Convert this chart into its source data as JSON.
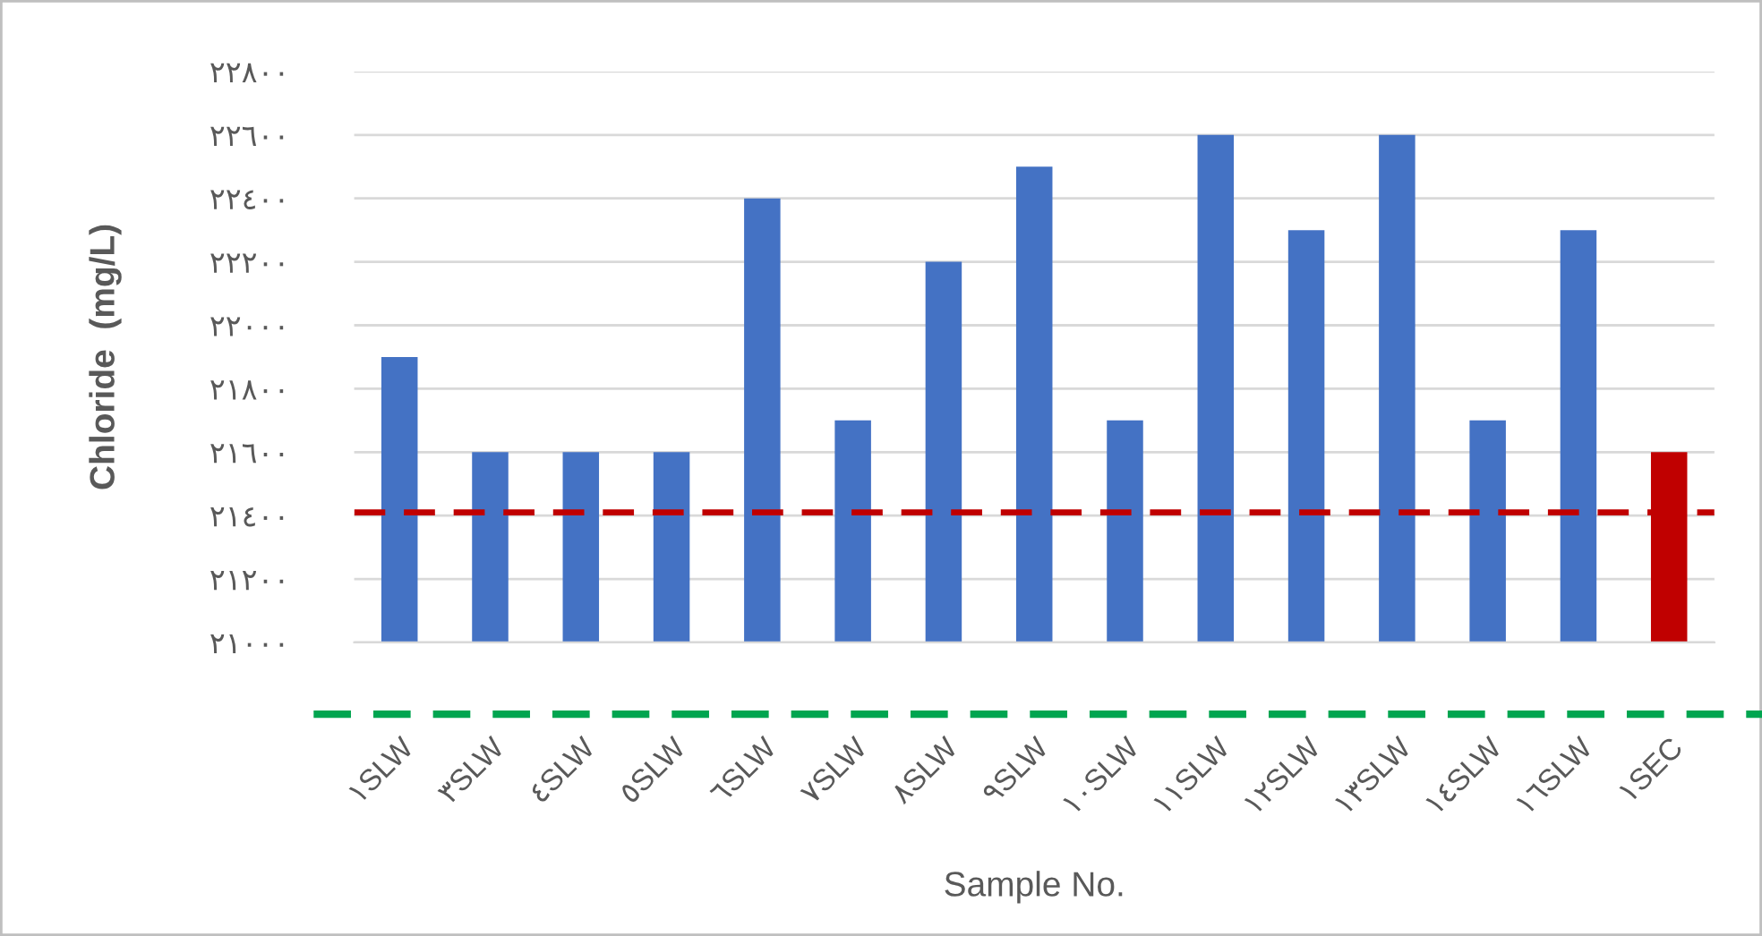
{
  "chart_data": {
    "type": "bar",
    "xlabel": "Sample No.",
    "ylabel": "Chloride  (mg/L)",
    "categories": [
      "١SLW",
      "٣SLW",
      "٤SLW",
      "٥SLW",
      "٦SLW",
      "٧SLW",
      "٨SLW",
      "٩SLW",
      "١٠SLW",
      "١١SLW",
      "١٢SLW",
      "١٣SLW",
      "١٤SLW",
      "١٦SLW",
      "١SEC"
    ],
    "values": [
      21900,
      21600,
      21600,
      21600,
      22400,
      21700,
      22200,
      22500,
      21700,
      22600,
      22300,
      22600,
      21700,
      22300,
      21600
    ],
    "colors": [
      "#4472c4",
      "#4472c4",
      "#4472c4",
      "#4472c4",
      "#4472c4",
      "#4472c4",
      "#4472c4",
      "#4472c4",
      "#4472c4",
      "#4472c4",
      "#4472c4",
      "#4472c4",
      "#4472c4",
      "#4472c4",
      "#c00000"
    ],
    "ylim": [
      21000,
      22800
    ],
    "yticks": [
      {
        "value": 21000,
        "label": "٢١٠٠٠"
      },
      {
        "value": 21200,
        "label": "٢١٢٠٠"
      },
      {
        "value": 21400,
        "label": "٢١٤٠٠"
      },
      {
        "value": 21600,
        "label": "٢١٦٠٠"
      },
      {
        "value": 21800,
        "label": "٢١٨٠٠"
      },
      {
        "value": 22000,
        "label": "٢٢٠٠٠"
      },
      {
        "value": 22200,
        "label": "٢٢٢٠٠"
      },
      {
        "value": 22400,
        "label": "٢٢٤٠٠"
      },
      {
        "value": 22600,
        "label": "٢٢٦٠٠"
      },
      {
        "value": 22800,
        "label": "٢٢٨٠٠"
      }
    ],
    "grid": "y",
    "ref_lines": [
      {
        "axis": "y",
        "value": 21410,
        "color": "#c00000",
        "line_style": "dashed"
      }
    ]
  }
}
